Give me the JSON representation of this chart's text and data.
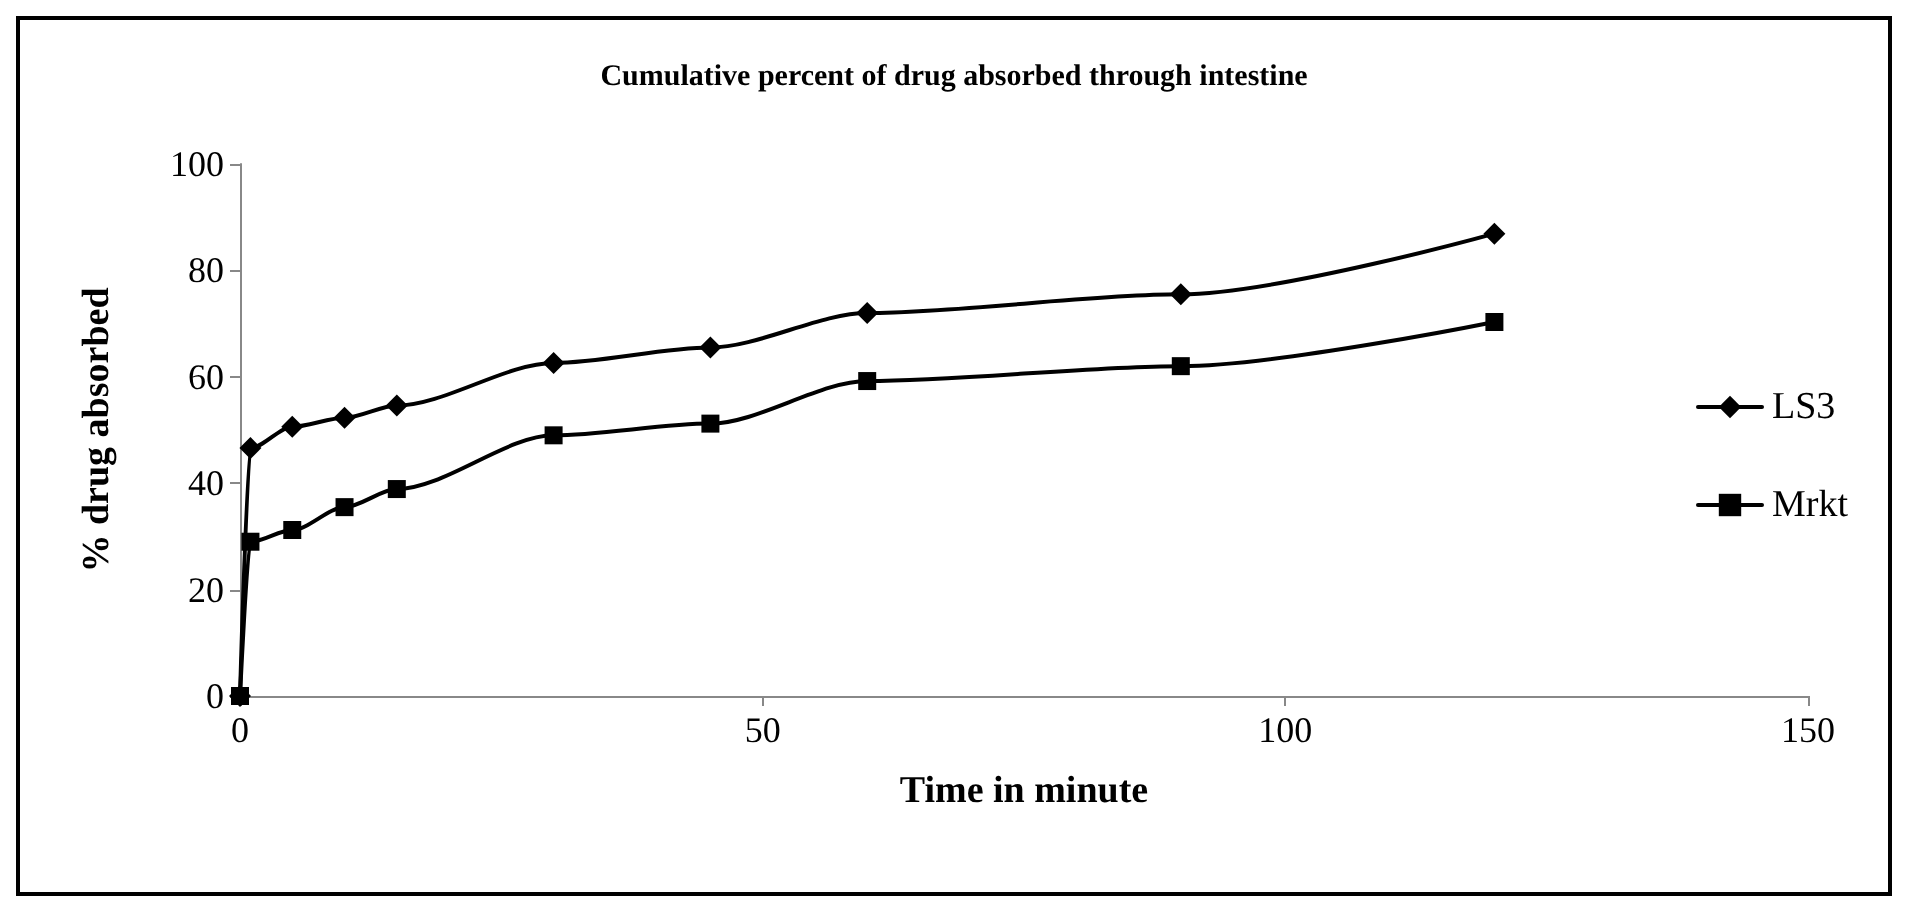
{
  "chart_data": {
    "type": "line",
    "title": "Cumulative percent of drug absorbed through intestine",
    "xlabel": "Time in minute",
    "ylabel": "% drug absorbed",
    "x": [
      0,
      1,
      5,
      10,
      15,
      30,
      45,
      60,
      90,
      120
    ],
    "series": [
      {
        "name": "LS3",
        "color": "#000000",
        "marker": "diamond",
        "values": [
          0,
          46.6,
          50.6,
          52.3,
          54.6,
          62.6,
          65.5,
          72,
          75.5,
          86.9
        ]
      },
      {
        "name": "Mrkt",
        "color": "#000000",
        "marker": "square",
        "values": [
          0,
          29,
          31.2,
          35.5,
          38.9,
          49,
          51.2,
          59.2,
          62,
          70.3
        ]
      }
    ],
    "xlim": [
      0,
      150
    ],
    "xticks": [
      0,
      50,
      100,
      150
    ],
    "ylim": [
      0,
      100
    ],
    "yticks": [
      0,
      20,
      40,
      60,
      80,
      100
    ],
    "grid": false,
    "legend": "right",
    "line_style": "solid"
  }
}
